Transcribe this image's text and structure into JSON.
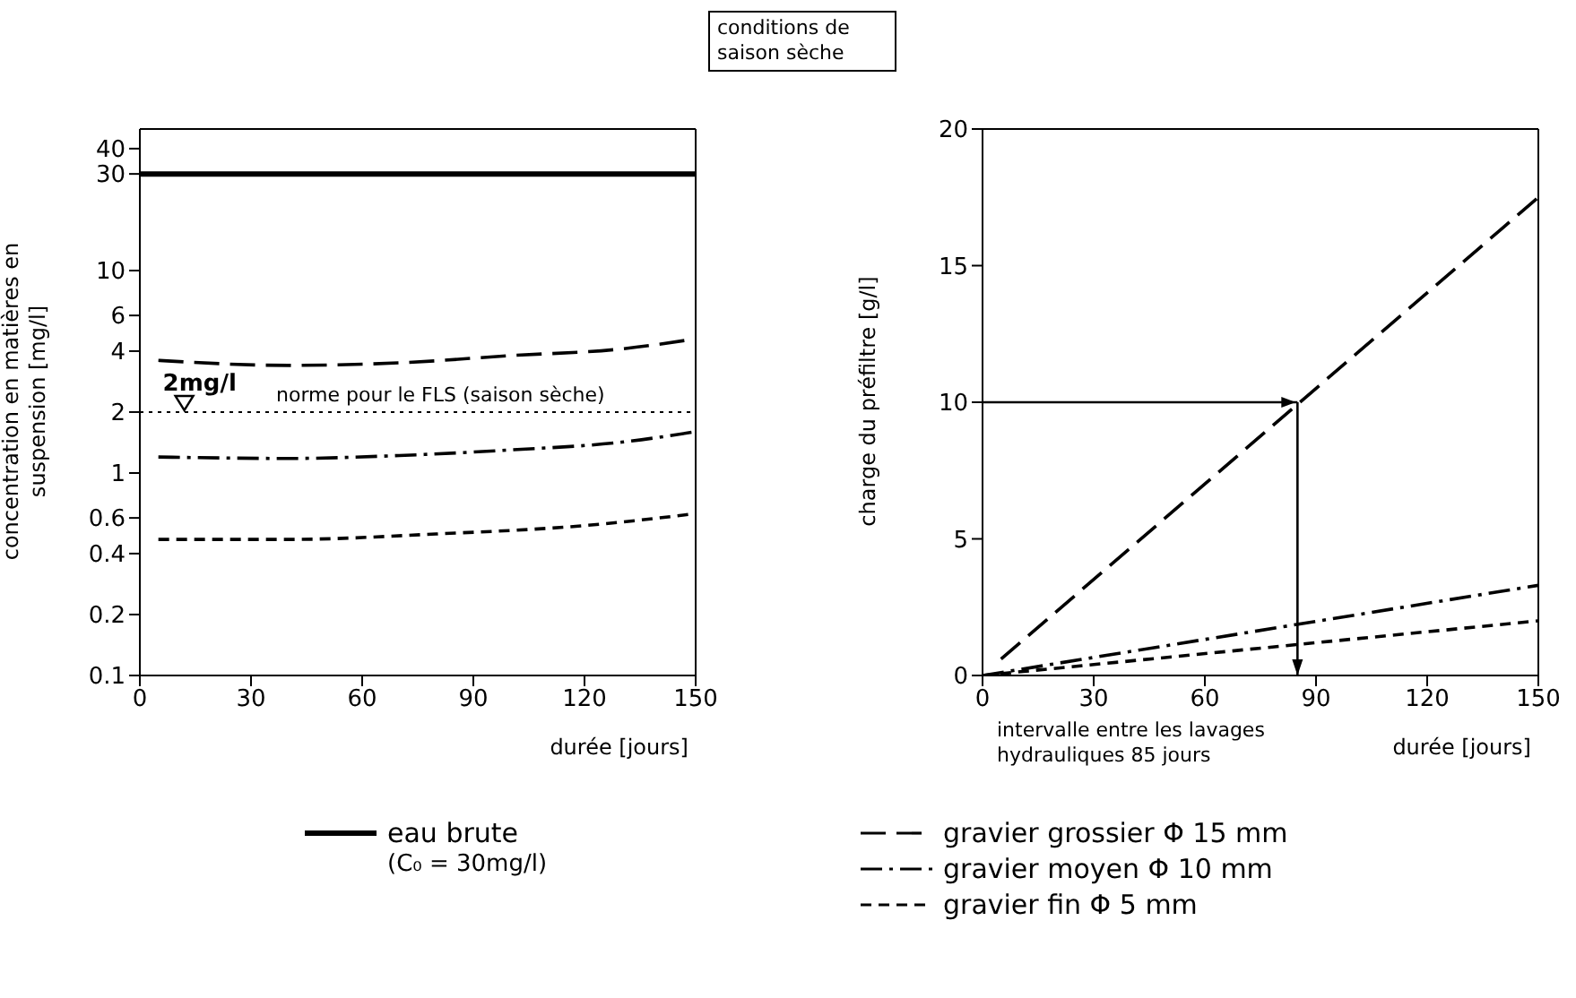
{
  "chart_data": [
    {
      "type": "line",
      "title": "conditions de saison sèche",
      "xlabel": "durée [jours]",
      "ylabel": "concentration en matières en suspension [mg/l]",
      "log": "y",
      "xlim": [
        0,
        150
      ],
      "xticks": [
        0,
        30,
        60,
        90,
        120,
        150
      ],
      "ylim": [
        0.1,
        50
      ],
      "yticks": [
        0.1,
        0.2,
        0.4,
        0.6,
        1,
        2,
        4,
        6,
        10,
        30,
        40
      ],
      "legend": "bottom",
      "series": [
        {
          "name": "eau brute",
          "color": "#000000",
          "line_style": "solid",
          "x": [
            0,
            150
          ],
          "values": [
            30,
            30
          ]
        },
        {
          "color": "#000000",
          "line_style": "longdash",
          "x": [
            5,
            40,
            70,
            100,
            130,
            150
          ],
          "values": [
            3.6,
            3.4,
            3.5,
            3.8,
            4.1,
            4.6
          ]
        },
        {
          "color": "#000000",
          "line_style": "dashdot",
          "x": [
            5,
            40,
            70,
            100,
            130,
            150
          ],
          "values": [
            1.2,
            1.18,
            1.22,
            1.3,
            1.42,
            1.6
          ]
        },
        {
          "color": "#000000",
          "line_style": "dashed",
          "x": [
            5,
            40,
            80,
            120,
            150
          ],
          "values": [
            0.47,
            0.47,
            0.5,
            0.55,
            0.63
          ]
        }
      ],
      "ref_lines": [
        {
          "axis": "y",
          "value": 2,
          "label": "norme pour le FLS (saison sèche)",
          "line_style": "dotted"
        }
      ],
      "annotations": [
        {
          "text": "2mg/l",
          "x": 12,
          "y": 2
        },
        "(C₀ = 30mg/l)"
      ]
    },
    {
      "type": "line",
      "xlabel": "durée [jours]",
      "ylabel": "charge du préfiltre [g/l]",
      "xlim": [
        0,
        150
      ],
      "xticks": [
        0,
        30,
        60,
        90,
        120,
        150
      ],
      "ylim": [
        0,
        20
      ],
      "yticks": [
        0,
        5,
        10,
        15,
        20
      ],
      "legend": "bottom",
      "series": [
        {
          "name": "gravier grossier Φ 15 mm",
          "color": "#000000",
          "line_style": "longdash",
          "x": [
            5,
            150
          ],
          "values": [
            0.6,
            17.5
          ]
        },
        {
          "name": "gravier moyen Φ 10 mm",
          "color": "#000000",
          "line_style": "dashdot",
          "x": [
            0,
            150
          ],
          "values": [
            0,
            3.3
          ]
        },
        {
          "name": "gravier fin Φ 5 mm",
          "color": "#000000",
          "line_style": "dashed",
          "x": [
            0,
            150
          ],
          "values": [
            0,
            2.0
          ]
        }
      ],
      "ref_lines": [
        {
          "axis": "y",
          "value": 10
        },
        {
          "axis": "x",
          "value": 85
        }
      ],
      "annotations": [
        "intervalle entre les lavages hydrauliques 85 jours"
      ]
    }
  ]
}
